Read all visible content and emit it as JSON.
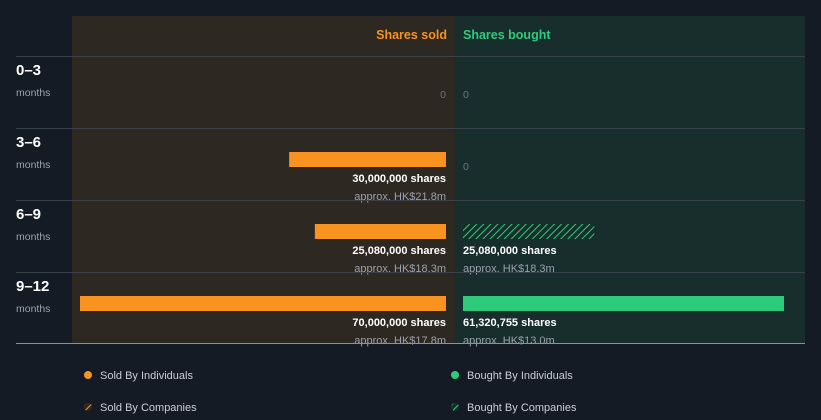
{
  "chart_data": {
    "type": "bar",
    "orientation": "horizontal-diverging",
    "headers": {
      "sold": "Shares sold",
      "bought": "Shares bought"
    },
    "sold_max": 70000000,
    "bought_max": 61320755,
    "colors": {
      "sold": "#f7931e",
      "bought": "#2ecc7a",
      "sold_bg": "#2d2822",
      "bought_bg": "#182e2d",
      "page_bg": "#151b24",
      "header_sold": "#f7931e",
      "header_bought": "#2ecc7a"
    },
    "periods": [
      {
        "range": "0–3",
        "unit": "months",
        "sold": {
          "shares": 0,
          "label": "0",
          "approx": "",
          "type": "individuals"
        },
        "bought": {
          "shares": 0,
          "label": "0",
          "approx": "",
          "type": "individuals"
        }
      },
      {
        "range": "3–6",
        "unit": "months",
        "sold": {
          "shares": 30000000,
          "label": "30,000,000 shares",
          "approx": "approx. HK$21.8m",
          "type": "individuals"
        },
        "bought": {
          "shares": 0,
          "label": "0",
          "approx": "",
          "type": "individuals"
        }
      },
      {
        "range": "6–9",
        "unit": "months",
        "sold": {
          "shares": 25080000,
          "label": "25,080,000 shares",
          "approx": "approx. HK$18.3m",
          "type": "individuals"
        },
        "bought": {
          "shares": 25080000,
          "label": "25,080,000 shares",
          "approx": "approx. HK$18.3m",
          "type": "companies"
        }
      },
      {
        "range": "9–12",
        "unit": "months",
        "sold": {
          "shares": 70000000,
          "label": "70,000,000 shares",
          "approx": "approx. HK$17.8m",
          "type": "individuals"
        },
        "bought": {
          "shares": 61320755,
          "label": "61,320,755 shares",
          "approx": "approx. HK$13.0m",
          "type": "individuals"
        }
      }
    ],
    "legend": [
      {
        "label": "Sold By Individuals",
        "kind": "sold",
        "pattern": "solid",
        "position": "bottom-left"
      },
      {
        "label": "Bought By Individuals",
        "kind": "bought",
        "pattern": "solid",
        "position": "bottom-right"
      },
      {
        "label": "Sold By Companies",
        "kind": "sold",
        "pattern": "hatched",
        "position": "bottom-left"
      },
      {
        "label": "Bought By Companies",
        "kind": "bought",
        "pattern": "hatched",
        "position": "bottom-right"
      }
    ]
  }
}
